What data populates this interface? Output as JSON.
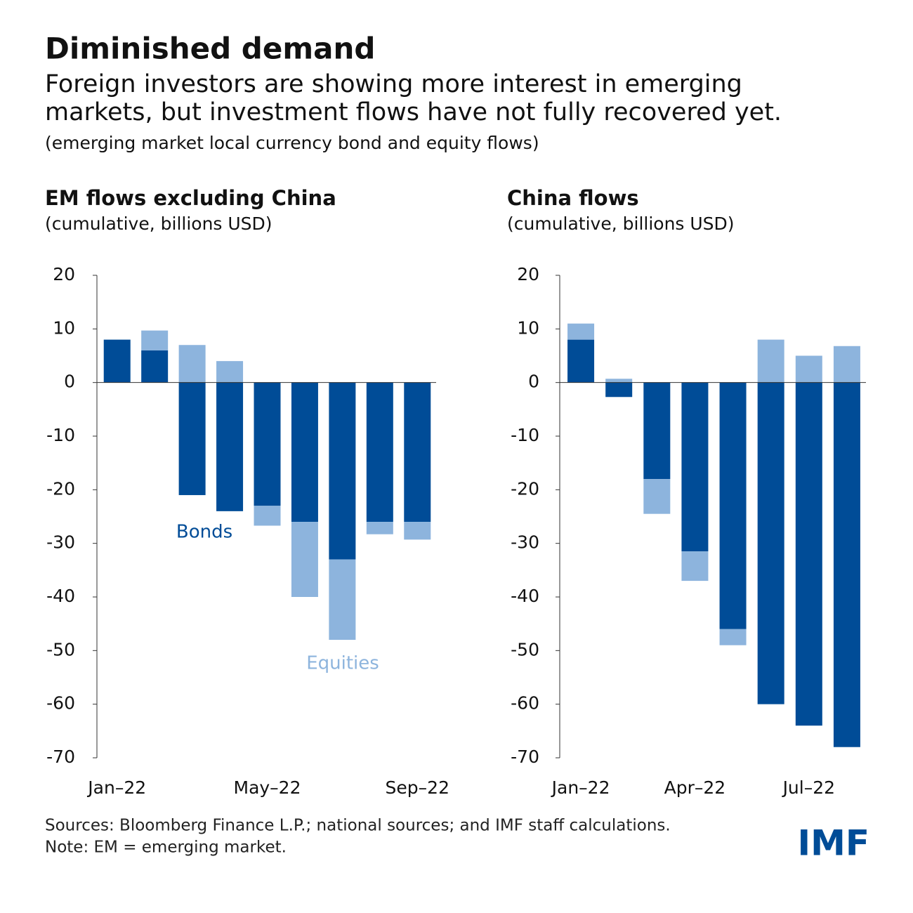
{
  "title": "Diminished demand",
  "subtitle": [
    "Foreign investors are showing more interest in emerging",
    "markets, but investment flows have not fully recovered yet."
  ],
  "description": "(emerging market local currency bond and equity flows)",
  "sources": "Sources: Bloomberg Finance L.P.; national sources; and IMF staff calculations.",
  "note": "Note: EM = emerging market.",
  "logo": "IMF",
  "chart_data": [
    {
      "type": "bar",
      "stacked": true,
      "title": "EM flows excluding China",
      "subtitle": "(cumulative, billions USD)",
      "categories": [
        "Jan–22",
        null,
        null,
        null,
        "May–22",
        null,
        null,
        null,
        "Sep–22"
      ],
      "series": [
        {
          "name": "Bonds",
          "color": "#004c97",
          "values": [
            8,
            6,
            -21,
            -24,
            -23,
            -26,
            -33,
            -26,
            -26
          ]
        },
        {
          "name": "Equities",
          "color": "#8db4dd",
          "values": [
            0,
            3.7,
            7,
            4,
            -3.7,
            -14,
            -15,
            -2.3,
            -3.3
          ]
        }
      ],
      "ylim": [
        -70,
        20
      ],
      "yticks": [
        20,
        10,
        0,
        -10,
        -20,
        -30,
        -40,
        -50,
        -60,
        -70
      ]
    },
    {
      "type": "bar",
      "stacked": true,
      "title": "China flows",
      "subtitle": "(cumulative, billions USD)",
      "categories": [
        "Jan–22",
        null,
        null,
        "Apr–22",
        null,
        null,
        "Jul–22",
        null
      ],
      "series": [
        {
          "color": "#004c97",
          "values": [
            8,
            -2.7,
            -18,
            -31.5,
            -46,
            -60,
            -64,
            -68
          ]
        },
        {
          "color": "#8db4dd",
          "values": [
            3,
            0.7,
            -6.5,
            -5.5,
            -3,
            8,
            5,
            6.8
          ]
        }
      ],
      "ylim": [
        -70,
        20
      ],
      "yticks": [
        20,
        10,
        0,
        -10,
        -20,
        -30,
        -40,
        -50,
        -60,
        -70
      ]
    }
  ]
}
